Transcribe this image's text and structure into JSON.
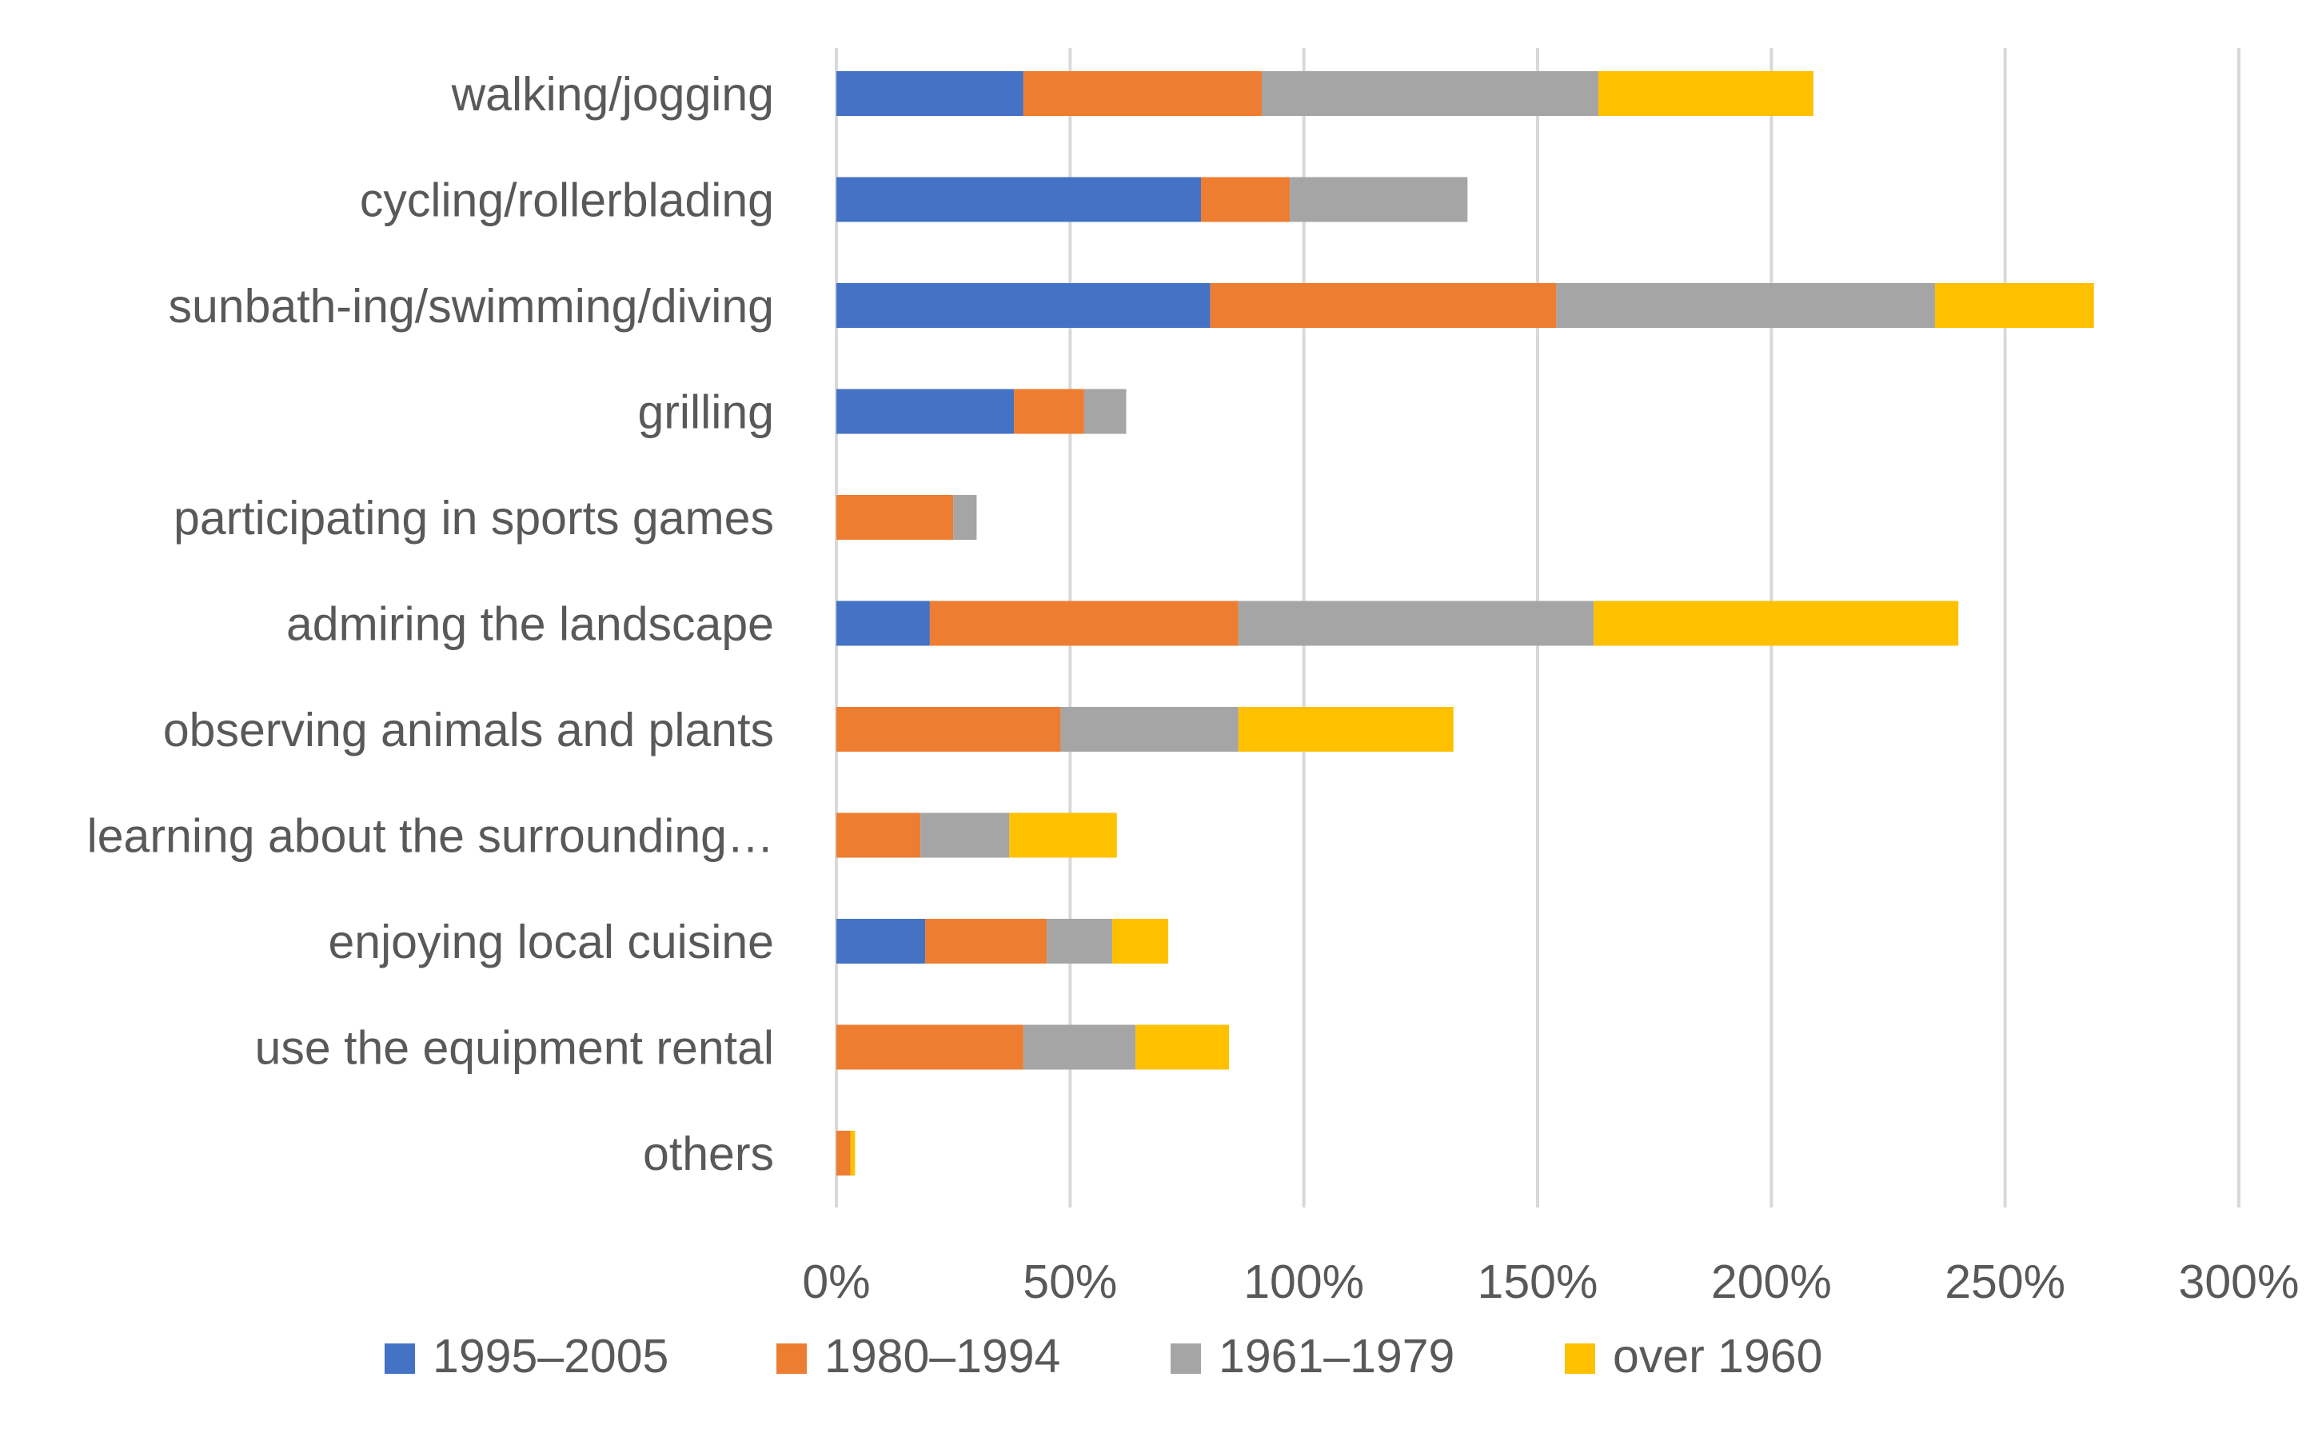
{
  "chart_data": {
    "type": "bar",
    "orientation": "horizontal",
    "stacked": true,
    "title": "",
    "xlabel": "",
    "ylabel": "",
    "xlim": [
      0,
      300
    ],
    "x_ticks": [
      0,
      50,
      100,
      150,
      200,
      250,
      300
    ],
    "x_tick_labels": [
      "0%",
      "50%",
      "100%",
      "150%",
      "200%",
      "250%",
      "300%"
    ],
    "grid": true,
    "legend_position": "bottom",
    "categories": [
      "walking/jogging",
      "cycling/rollerblading",
      "sunbath-ing/swimming/diving",
      "grilling",
      "participating in sports games",
      "admiring the landscape",
      "observing animals and plants",
      "learning about the surrounding…",
      "enjoying local cuisine",
      "use the equipment rental ",
      "others"
    ],
    "series": [
      {
        "name": "1995–2005",
        "color": "#4472C4",
        "values": [
          40,
          78,
          80,
          38,
          0,
          20,
          0,
          0,
          19,
          0,
          0
        ]
      },
      {
        "name": "1980–1994",
        "color": "#ED7D31",
        "values": [
          51,
          19,
          74,
          15,
          25,
          66,
          48,
          18,
          26,
          40,
          3
        ]
      },
      {
        "name": "1961–1979",
        "color": "#A5A5A5",
        "values": [
          72,
          38,
          81,
          9,
          5,
          76,
          38,
          19,
          14,
          24,
          0
        ]
      },
      {
        "name": "over 1960",
        "color": "#FFC000",
        "values": [
          46,
          0,
          34,
          0,
          0,
          78,
          46,
          23,
          12,
          20,
          1
        ]
      }
    ]
  }
}
